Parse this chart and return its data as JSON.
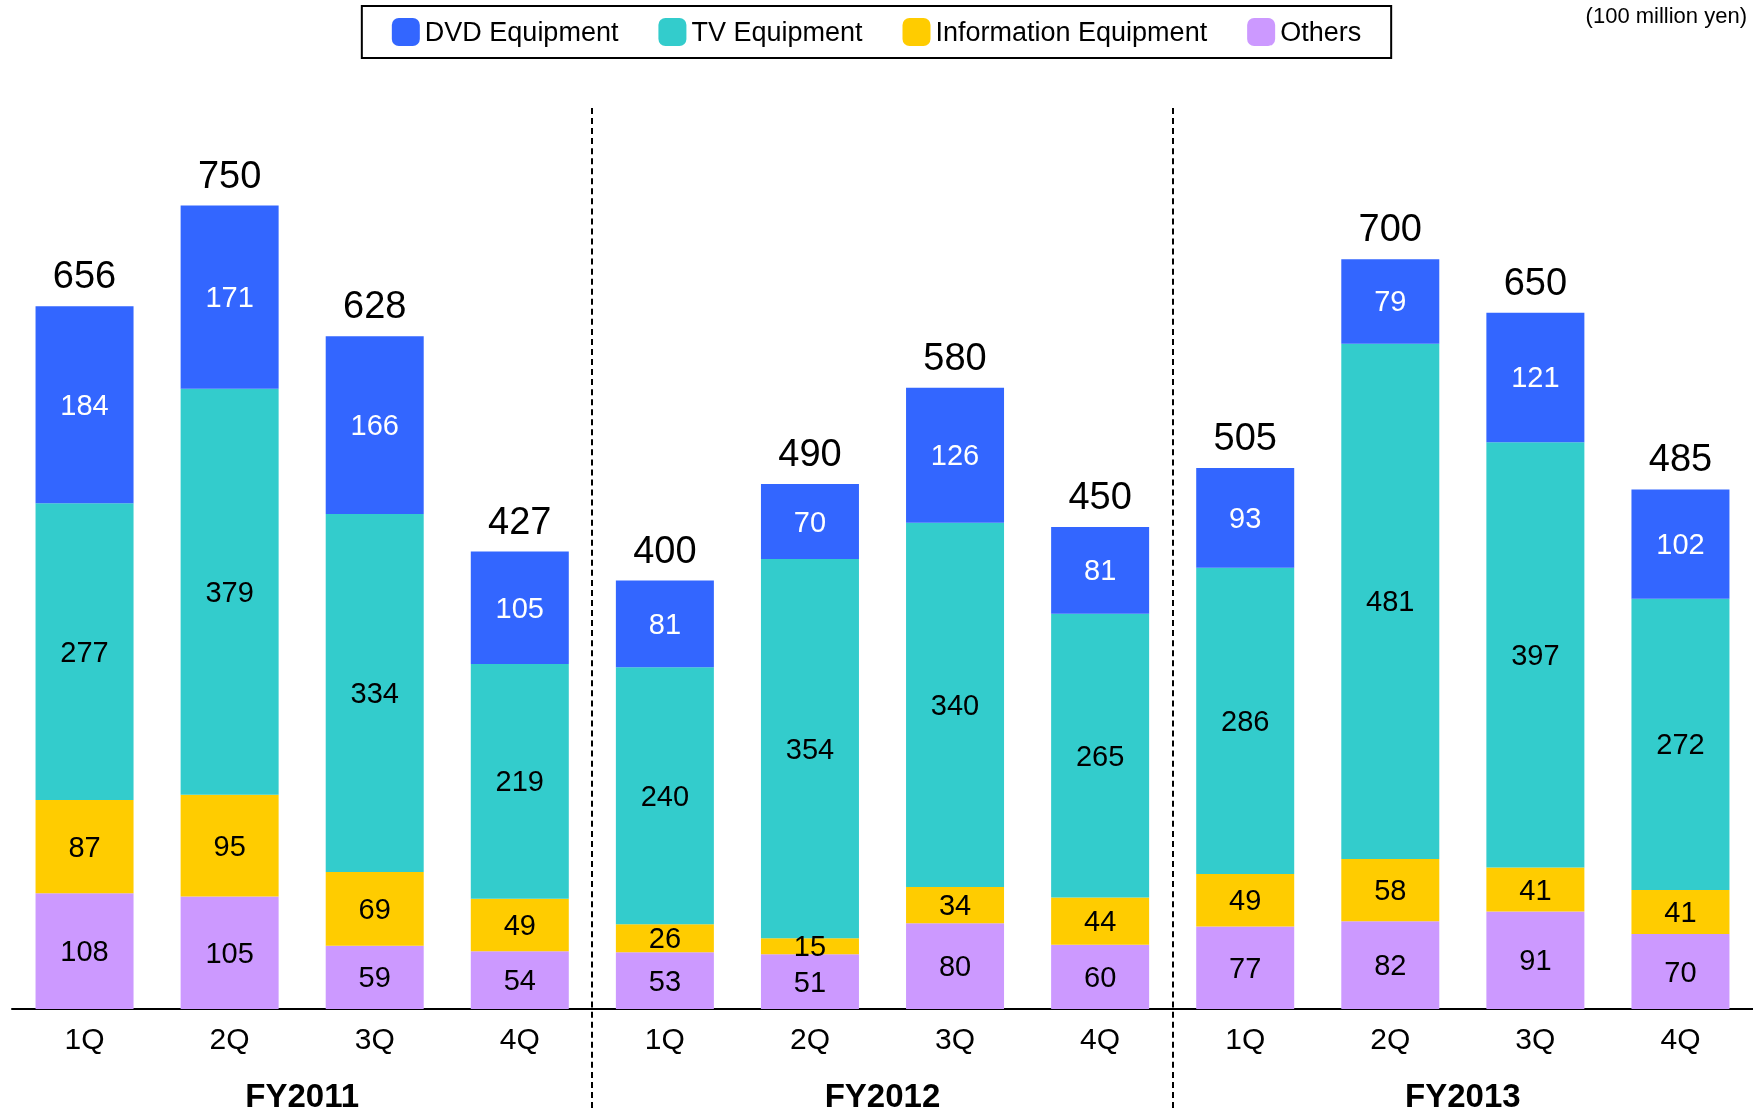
{
  "chart_data": {
    "type": "bar",
    "stacked": true,
    "data_labels": true,
    "legend": "top",
    "categories": [
      "1Q",
      "2Q",
      "3Q",
      "4Q",
      "1Q",
      "2Q",
      "3Q",
      "4Q",
      "1Q",
      "2Q",
      "3Q",
      "4Q"
    ],
    "series": [
      {
        "name": "Others",
        "color": "#cc99ff",
        "values": [
          108,
          105,
          59,
          54,
          53,
          51,
          80,
          60,
          77,
          82,
          91,
          70
        ]
      },
      {
        "name": "Information Equipment",
        "color": "#ffcc00",
        "values": [
          87,
          95,
          69,
          49,
          26,
          15,
          34,
          44,
          49,
          58,
          41,
          41
        ]
      },
      {
        "name": "TV Equipment",
        "color": "#33cccc",
        "values": [
          277,
          379,
          334,
          219,
          240,
          354,
          340,
          265,
          286,
          481,
          397,
          272
        ]
      },
      {
        "name": "DVD Equipment",
        "color": "#3366ff",
        "values": [
          184,
          171,
          166,
          105,
          81,
          70,
          126,
          81,
          93,
          79,
          121,
          102
        ]
      }
    ],
    "totals": [
      "656",
      "750",
      "628",
      "427",
      "400",
      "490",
      "580",
      "450",
      "505",
      "700",
      "650",
      "485"
    ],
    "annotations": [
      "FY2011",
      "FY2012",
      "FY2013",
      "(100 million yen)"
    ]
  }
}
